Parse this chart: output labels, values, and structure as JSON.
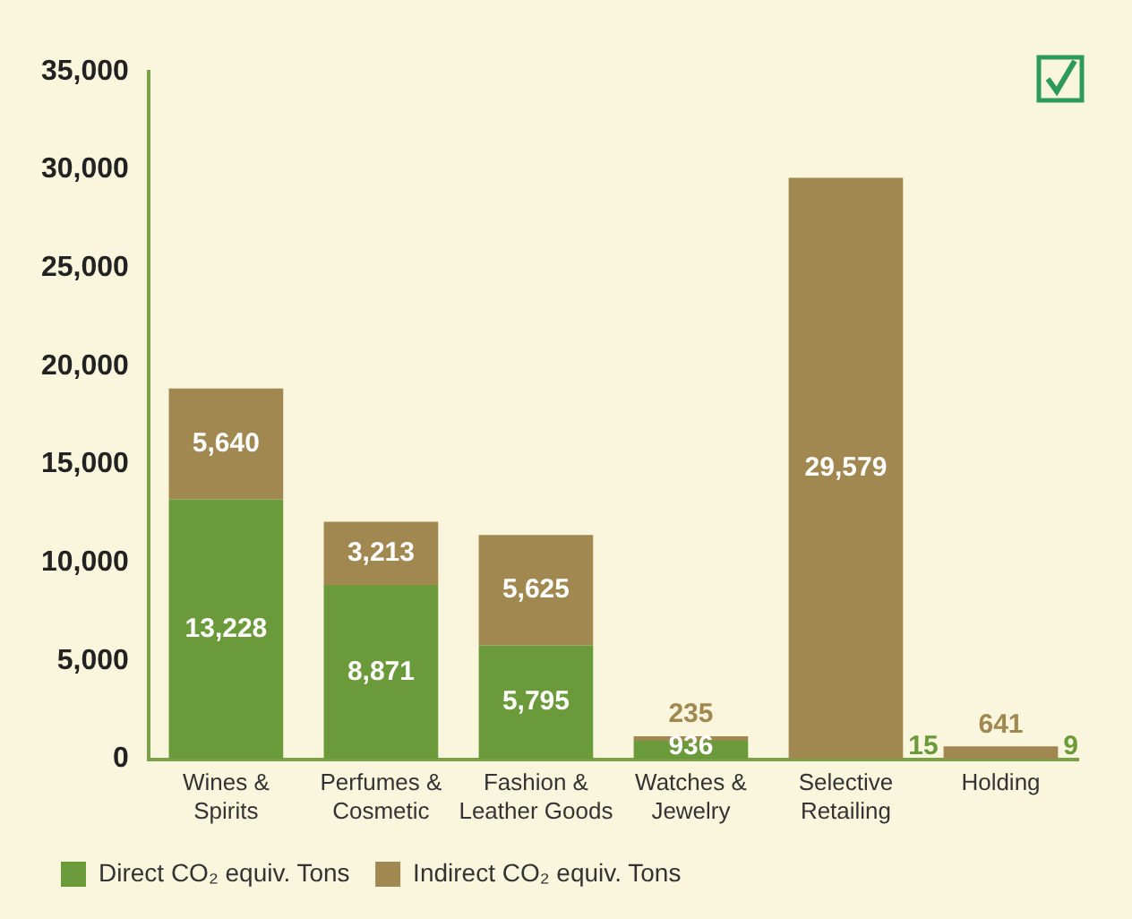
{
  "chart_data": {
    "type": "bar",
    "stacked": true,
    "categories": [
      "Wines & Spirits",
      "Perfumes & Cosmetic",
      "Fashion & Leather Goods",
      "Watches & Jewelry",
      "Selective Retailing",
      "Holding"
    ],
    "series": [
      {
        "name": "Direct CO₂ equiv. Tons",
        "color": "#6b9a3a",
        "values": [
          13228,
          8871,
          5795,
          936,
          15,
          9
        ],
        "value_labels": [
          "13,228",
          "8,871",
          "5,795",
          "936",
          "15",
          "9"
        ]
      },
      {
        "name": "Indirect CO₂ equiv. Tons",
        "color": "#a08850",
        "values": [
          5640,
          3213,
          5625,
          235,
          29579,
          641
        ],
        "value_labels": [
          "5,640",
          "3,213",
          "5,625",
          "235",
          "29,579",
          "641"
        ]
      }
    ],
    "ylim": [
      0,
      35000
    ],
    "yticks": [
      {
        "value": 0,
        "label": "0"
      },
      {
        "value": 5000,
        "label": "5,000"
      },
      {
        "value": 10000,
        "label": "10,000"
      },
      {
        "value": 15000,
        "label": "15,000"
      },
      {
        "value": 20000,
        "label": "20,000"
      },
      {
        "value": 25000,
        "label": "25,000"
      },
      {
        "value": 30000,
        "label": "30,000"
      },
      {
        "value": 35000,
        "label": "35,000"
      }
    ],
    "grid": false,
    "legend": "bottom left"
  }
}
